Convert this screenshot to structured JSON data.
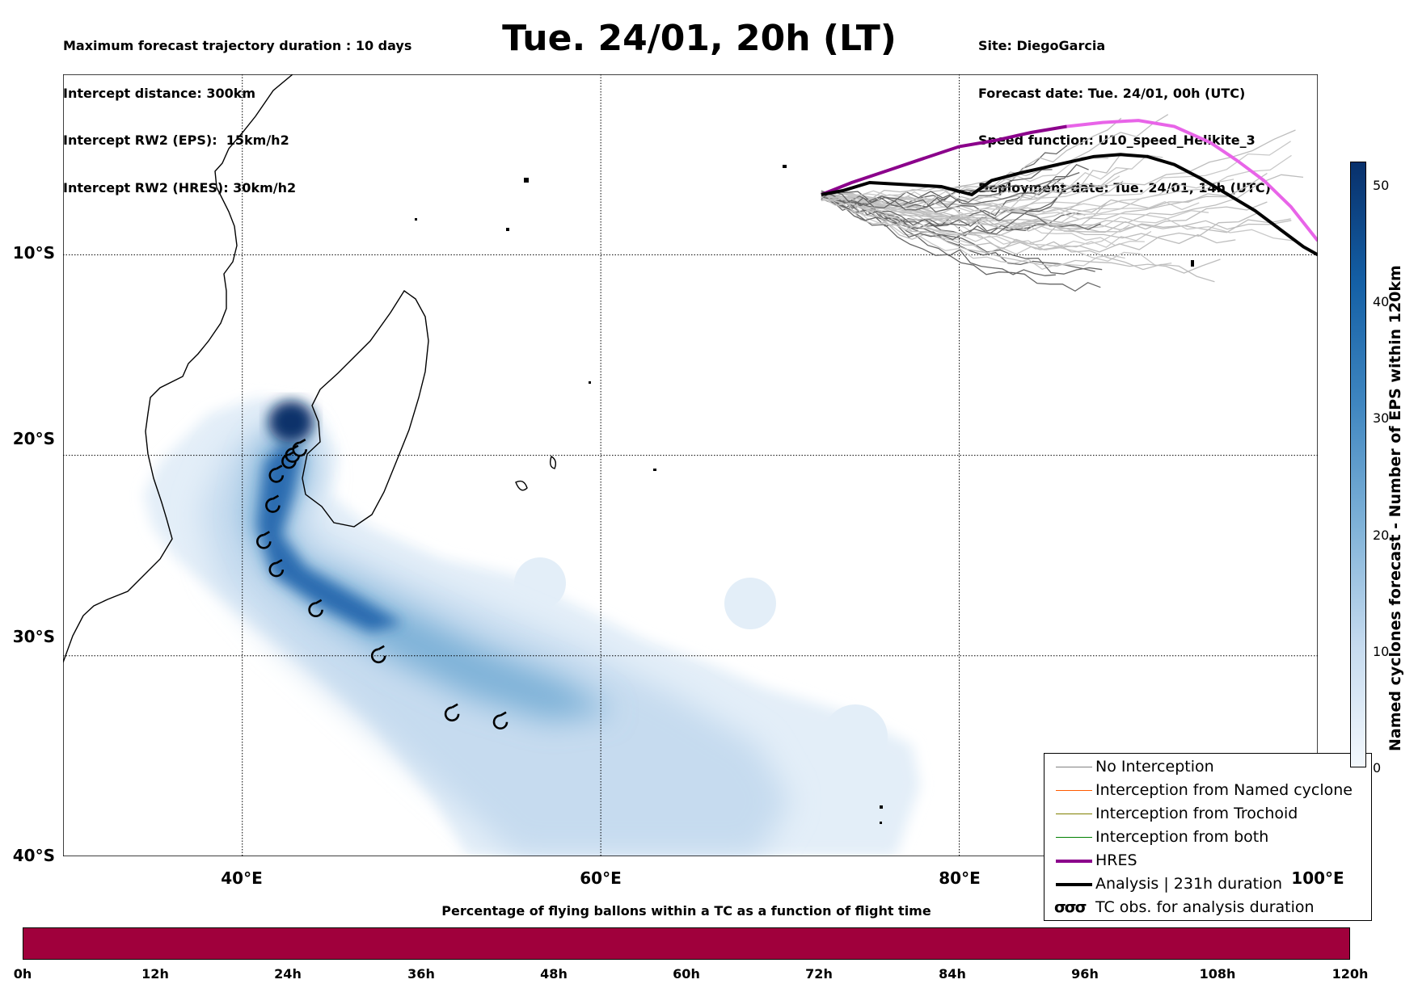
{
  "header_left": [
    "Maximum forecast trajectory duration : 10 days",
    "Intercept distance: 300km",
    "Intercept RW2 (EPS):  15km/h2",
    "Intercept RW2 (HRES): 30km/h2"
  ],
  "title": "Tue. 24/01, 20h (LT)",
  "header_right": [
    "Site: DiegoGarcia",
    "Forecast date: Tue. 24/01, 00h (UTC)",
    "Speed function: U10_speed_Helikite_3",
    "Deployment date: Tue. 24/01, 14h (UTC)"
  ],
  "map": {
    "lon_range": [
      30,
      100
    ],
    "lat_range": [
      -40,
      -1
    ],
    "lat_labels": [
      {
        "lat": -10,
        "label": "10°S"
      },
      {
        "lat": -20,
        "label": "20°S"
      },
      {
        "lat": -30,
        "label": "30°S"
      },
      {
        "lat": -40,
        "label": "40°S"
      }
    ],
    "lon_labels": [
      {
        "lon": 40,
        "label": "40°E"
      },
      {
        "lon": 60,
        "label": "60°E"
      },
      {
        "lon": 80,
        "label": "80°E"
      },
      {
        "lon": 100,
        "label": "100°E"
      }
    ],
    "grid_lons": [
      40,
      60,
      80
    ],
    "grid_lats": [
      -10,
      -20,
      -30
    ],
    "tc_obs_lonlat": [
      [
        43.2,
        -19.7
      ],
      [
        42.8,
        -20.0
      ],
      [
        42.6,
        -20.3
      ],
      [
        41.9,
        -21.0
      ],
      [
        41.7,
        -22.5
      ],
      [
        41.2,
        -24.3
      ],
      [
        41.9,
        -25.7
      ],
      [
        44.1,
        -27.7
      ],
      [
        47.6,
        -30.0
      ],
      [
        51.7,
        -32.9
      ],
      [
        54.4,
        -33.3
      ]
    ],
    "analysis_track_lonlat": [
      [
        72.3,
        -7.0
      ],
      [
        73.5,
        -6.8
      ],
      [
        75.0,
        -6.4
      ],
      [
        77.0,
        -6.5
      ],
      [
        79.0,
        -6.6
      ],
      [
        80.7,
        -7.0
      ],
      [
        81.8,
        -6.3
      ],
      [
        83.5,
        -5.9
      ],
      [
        85.5,
        -5.5
      ],
      [
        87.5,
        -5.1
      ],
      [
        89.0,
        -5.0
      ],
      [
        90.5,
        -5.1
      ],
      [
        92.0,
        -5.5
      ],
      [
        93.5,
        -6.2
      ],
      [
        95.0,
        -7.0
      ],
      [
        96.5,
        -7.8
      ],
      [
        98.0,
        -8.8
      ],
      [
        99.2,
        -9.6
      ],
      [
        100,
        -10.0
      ]
    ],
    "hres_track_lonlat": [
      [
        72.3,
        -7.0
      ],
      [
        74.0,
        -6.4
      ],
      [
        76.0,
        -5.8
      ],
      [
        78.0,
        -5.2
      ],
      [
        80.0,
        -4.6
      ],
      [
        82.0,
        -4.3
      ],
      [
        84.0,
        -3.9
      ],
      [
        86.0,
        -3.6
      ],
      [
        88.0,
        -3.4
      ],
      [
        90.0,
        -3.3
      ],
      [
        92.0,
        -3.6
      ],
      [
        94.0,
        -4.4
      ],
      [
        95.5,
        -5.3
      ],
      [
        97.0,
        -6.3
      ],
      [
        98.5,
        -7.6
      ],
      [
        100,
        -9.3
      ]
    ]
  },
  "legend": {
    "items": [
      {
        "label": "No Interception",
        "color": "#808080",
        "width": 1.5
      },
      {
        "label": "Interception from Named cyclone",
        "color": "#ff5a00",
        "width": 1.5
      },
      {
        "label": "Interception from Trochoid",
        "color": "#808000",
        "width": 1.5
      },
      {
        "label": "Interception from both",
        "color": "#008000",
        "width": 1.5
      },
      {
        "label": "HRES",
        "color": "#8b008b",
        "width": 4
      },
      {
        "label": "Analysis | 231h duration",
        "color": "#000000",
        "width": 4
      }
    ],
    "tc_obs_symbol": "σσσ",
    "tc_obs_label": "TC obs. for analysis duration"
  },
  "colorbar": {
    "label": "Named cyclones forecast - Number of EPS within 120km",
    "range": [
      0,
      52
    ],
    "ticks": [
      "0",
      "10",
      "20",
      "30",
      "40",
      "50"
    ],
    "tick_values": [
      0,
      10,
      20,
      30,
      40,
      50
    ]
  },
  "hbar": {
    "title": "Percentage of flying ballons within a TC as a function of flight time",
    "color": "#a0003c",
    "ticks": [
      "0h",
      "12h",
      "24h",
      "36h",
      "48h",
      "60h",
      "72h",
      "84h",
      "96h",
      "108h",
      "120h"
    ]
  }
}
